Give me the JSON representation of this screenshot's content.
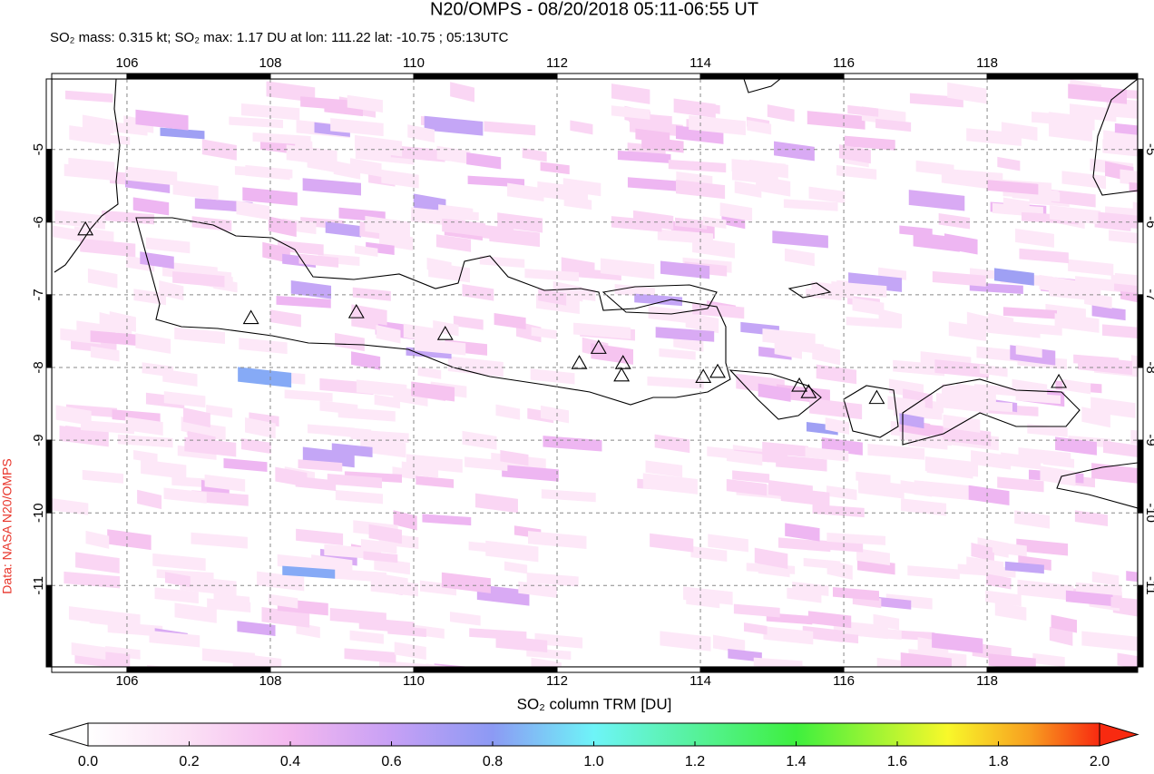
{
  "header": {
    "title": "N20/OMPS - 08/20/2018 05:11-06:55 UT",
    "subtitle": "SO₂ mass: 0.315 kt; SO₂ max: 1.17 DU at lon: 111.22 lat: -10.75 ; 05:13UTC"
  },
  "map": {
    "xlim": [
      104.95,
      120.1
    ],
    "ylim": [
      -12.12,
      -4.03
    ],
    "xticks": [
      106,
      108,
      110,
      112,
      114,
      116,
      118
    ],
    "yticks": [
      -5,
      -6,
      -7,
      -8,
      -9,
      -10,
      -11
    ],
    "grid": true,
    "volcanoes": {
      "lon": [
        105.42,
        107.73,
        109.2,
        110.44,
        112.31,
        112.58,
        112.92,
        112.9,
        114.04,
        114.24,
        115.38,
        115.51,
        116.46,
        119.0
      ],
      "lat": [
        -6.1,
        -7.32,
        -7.24,
        -7.54,
        -7.94,
        -7.73,
        -7.94,
        -8.11,
        -8.13,
        -8.06,
        -8.25,
        -8.34,
        -8.42,
        -8.2
      ]
    }
  },
  "colorbar": {
    "label": "SO₂ column TRM [DU]",
    "lim": [
      0,
      2
    ],
    "ticks": [
      {
        "value": 0,
        "label": "0.0"
      },
      {
        "value": 0.2,
        "label": "0.2"
      },
      {
        "value": 0.4,
        "label": "0.4"
      },
      {
        "value": 0.6,
        "label": "0.6"
      },
      {
        "value": 0.8,
        "label": "0.8"
      },
      {
        "value": 1,
        "label": "1.0"
      },
      {
        "value": 1.2,
        "label": "1.2"
      },
      {
        "value": 1.4,
        "label": "1.4"
      },
      {
        "value": 1.6,
        "label": "1.6"
      },
      {
        "value": 1.8,
        "label": "1.8"
      },
      {
        "value": 2,
        "label": "2.0"
      }
    ]
  },
  "credit": "Data: NASA N20/OMPS"
}
